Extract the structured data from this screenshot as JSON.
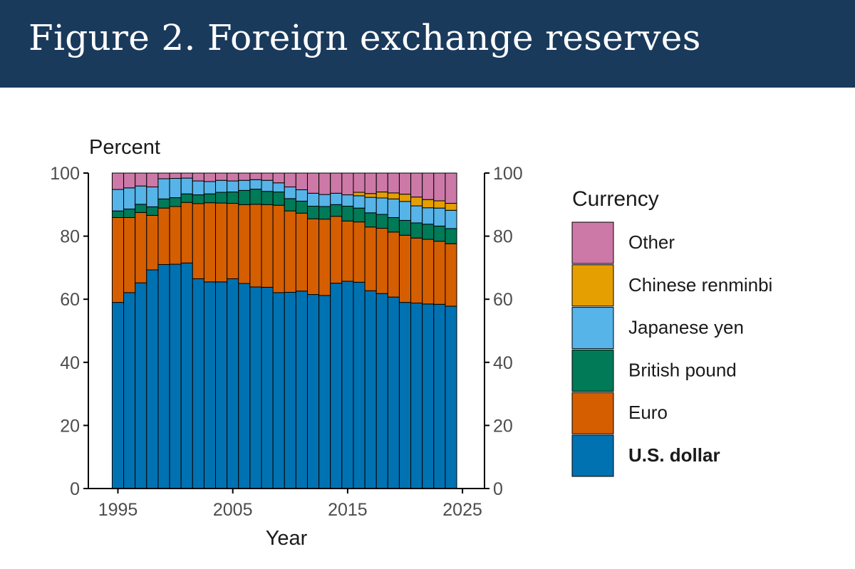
{
  "header": {
    "title": "Figure 2. Foreign exchange reserves"
  },
  "chart_data": {
    "type": "bar",
    "stacked": true,
    "x": [
      1995,
      1996,
      1997,
      1998,
      1999,
      2000,
      2001,
      2002,
      2003,
      2004,
      2005,
      2006,
      2007,
      2008,
      2009,
      2010,
      2011,
      2012,
      2013,
      2014,
      2015,
      2016,
      2017,
      2018,
      2019,
      2020,
      2021,
      2022,
      2023,
      2024
    ],
    "xticks": [
      1995,
      2005,
      2015,
      2025
    ],
    "xlabel": "Year",
    "ylabel": "Percent",
    "ylim": [
      0,
      100
    ],
    "yticks": [
      0,
      20,
      40,
      60,
      80,
      100
    ],
    "secondary_y_axis": true,
    "grid": false,
    "legend": {
      "title": "Currency",
      "position": "right",
      "bold_entry": "U.S. dollar"
    },
    "series": [
      {
        "name": "U.S. dollar",
        "color": "#0072b2",
        "values": [
          59.0,
          62.1,
          65.2,
          69.3,
          71.0,
          71.1,
          71.5,
          66.5,
          65.5,
          65.5,
          66.5,
          65.0,
          63.9,
          63.8,
          62.1,
          62.2,
          62.6,
          61.5,
          61.2,
          65.1,
          65.7,
          65.4,
          62.7,
          61.8,
          60.7,
          59.0,
          58.8,
          58.5,
          58.4,
          57.8
        ]
      },
      {
        "name": "Euro",
        "color": "#d55e00",
        "values": [
          26.9,
          23.8,
          22.3,
          17.3,
          17.9,
          18.3,
          19.2,
          23.8,
          25.1,
          25.0,
          23.9,
          25.0,
          26.2,
          26.2,
          27.7,
          25.8,
          24.7,
          24.0,
          24.2,
          21.2,
          19.1,
          19.1,
          20.2,
          20.7,
          20.6,
          21.3,
          20.6,
          20.5,
          20.0,
          19.8
        ]
      },
      {
        "name": "British pound",
        "color": "#007a57",
        "values": [
          2.1,
          2.7,
          2.6,
          2.7,
          2.9,
          2.8,
          2.7,
          2.8,
          2.8,
          3.4,
          3.6,
          4.5,
          4.8,
          4.2,
          4.2,
          3.9,
          3.8,
          4.0,
          4.0,
          3.7,
          4.7,
          4.4,
          4.5,
          4.4,
          4.6,
          4.7,
          4.8,
          4.8,
          4.8,
          4.8
        ]
      },
      {
        "name": "Japanese yen",
        "color": "#56b4e9",
        "values": [
          6.8,
          6.7,
          5.8,
          6.3,
          6.4,
          6.1,
          5.0,
          4.4,
          3.9,
          3.8,
          3.5,
          3.2,
          3.0,
          3.5,
          2.9,
          3.7,
          3.6,
          4.1,
          3.8,
          3.6,
          3.6,
          3.9,
          4.9,
          5.2,
          5.9,
          6.0,
          5.4,
          5.2,
          5.7,
          5.8
        ]
      },
      {
        "name": "Chinese renminbi",
        "color": "#e69f00",
        "values": [
          0,
          0,
          0,
          0,
          0,
          0,
          0,
          0,
          0,
          0,
          0,
          0,
          0,
          0,
          0,
          0,
          0,
          0,
          0,
          0,
          0,
          1.1,
          1.2,
          1.9,
          1.9,
          2.3,
          2.8,
          2.6,
          2.3,
          2.2
        ]
      },
      {
        "name": "Other",
        "color": "#cc79a7",
        "values": [
          5.2,
          4.7,
          4.1,
          4.4,
          1.8,
          1.7,
          1.6,
          2.5,
          2.7,
          2.3,
          2.5,
          2.3,
          2.1,
          2.3,
          3.1,
          4.4,
          5.3,
          6.4,
          6.8,
          6.4,
          6.9,
          6.1,
          6.5,
          6.0,
          6.3,
          6.7,
          7.6,
          8.4,
          8.8,
          9.6
        ]
      }
    ]
  }
}
